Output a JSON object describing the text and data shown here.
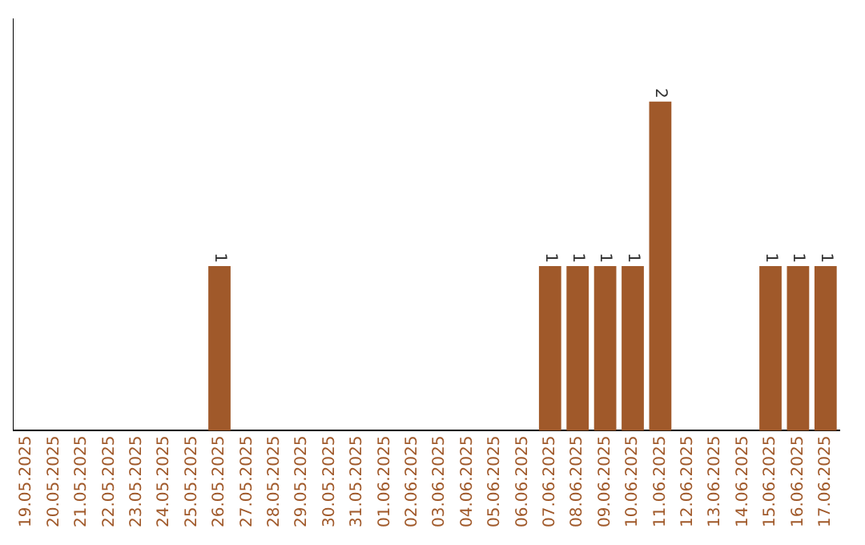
{
  "chart_data": {
    "type": "bar",
    "categories": [
      "19.05.2025",
      "20.05.2025",
      "21.05.2025",
      "22.05.2025",
      "23.05.2025",
      "24.05.2025",
      "25.05.2025",
      "26.05.2025",
      "27.05.2025",
      "28.05.2025",
      "29.05.2025",
      "30.05.2025",
      "31.05.2025",
      "01.06.2025",
      "02.06.2025",
      "03.06.2025",
      "04.06.2025",
      "05.06.2025",
      "06.06.2025",
      "07.06.2025",
      "08.06.2025",
      "09.06.2025",
      "10.06.2025",
      "11.06.2025",
      "12.06.2025",
      "13.06.2025",
      "14.06.2025",
      "15.06.2025",
      "16.06.2025",
      "17.06.2025"
    ],
    "values": [
      0,
      0,
      0,
      0,
      0,
      0,
      0,
      1,
      0,
      0,
      0,
      0,
      0,
      0,
      0,
      0,
      0,
      0,
      0,
      1,
      1,
      1,
      1,
      2,
      0,
      0,
      0,
      1,
      1,
      1
    ],
    "value_labels": [
      null,
      null,
      null,
      null,
      null,
      null,
      null,
      "1",
      null,
      null,
      null,
      null,
      null,
      null,
      null,
      null,
      null,
      null,
      null,
      "1",
      "1",
      "1",
      "1",
      "2",
      null,
      null,
      null,
      "1",
      "1",
      "1"
    ],
    "color": "#a0592a",
    "tick_labels": "x",
    "grid": false,
    "legend": false
  }
}
